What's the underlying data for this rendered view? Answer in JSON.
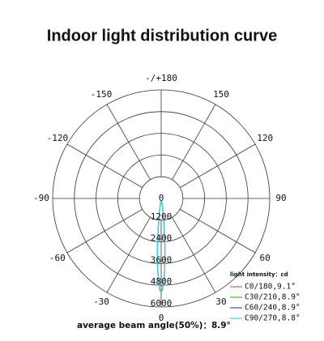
{
  "chart_data": {
    "type": "polar",
    "title": "Indoor light distribution curve",
    "theta": [
      -10,
      -8,
      -6,
      -4.5,
      -3,
      -2,
      -1,
      0,
      1,
      2,
      3,
      4.5,
      6,
      8,
      10
    ],
    "rlim": [
      0,
      6000
    ],
    "rticks": [
      0,
      1200,
      2400,
      3600,
      4800,
      6000
    ],
    "angle_ticks": [
      {
        "value": 180,
        "label": "-/+180"
      },
      150,
      120,
      90,
      60,
      30,
      0,
      -30,
      -60,
      -90,
      -120,
      -150
    ],
    "legend_title": "light intensity：cd",
    "series": [
      {
        "name": "C0/180,9.1°",
        "color": "#e05a5a",
        "values": [
          180,
          600,
          1560,
          2640,
          3860,
          4560,
          5040,
          5200,
          5030,
          4540,
          3840,
          2620,
          1540,
          590,
          170
        ]
      },
      {
        "name": "C30/210,8.9°",
        "color": "#3cc03c",
        "values": [
          160,
          570,
          1500,
          2600,
          3820,
          4530,
          5020,
          5200,
          5010,
          4520,
          3800,
          2590,
          1490,
          560,
          150
        ]
      },
      {
        "name": "C60/240,8.9°",
        "color": "#4050c8",
        "values": [
          160,
          560,
          1490,
          2600,
          3810,
          4520,
          5010,
          5190,
          5000,
          4520,
          3800,
          2600,
          1500,
          570,
          160
        ]
      },
      {
        "name": "C90/270,8.8°",
        "color": "#3cd8e8",
        "values": [
          150,
          540,
          1460,
          2580,
          3790,
          4510,
          5000,
          5180,
          5000,
          4510,
          3790,
          2580,
          1460,
          540,
          150
        ]
      }
    ],
    "note": "average beam angle(50%)：8.9°"
  }
}
